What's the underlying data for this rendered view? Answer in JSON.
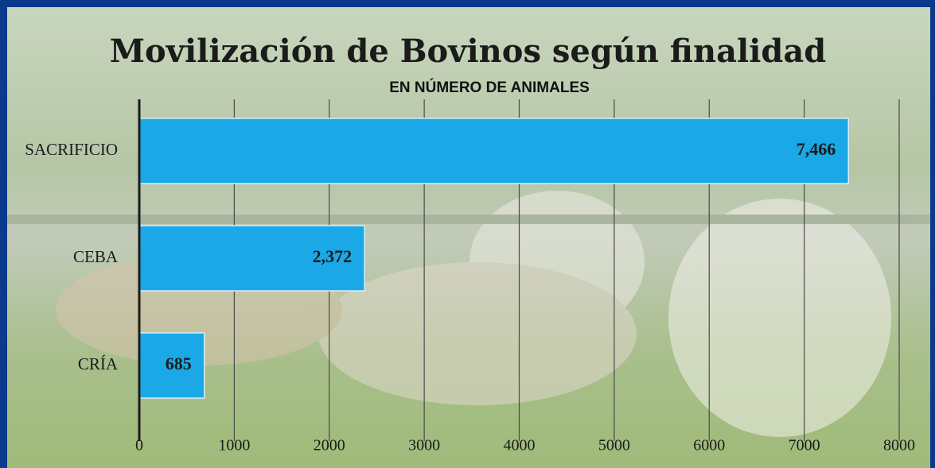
{
  "chart_data": {
    "type": "bar",
    "orientation": "horizontal",
    "title": "Movilización de Bovinos según finalidad",
    "subtitle": "EN NÚMERO DE ANIMALES",
    "categories": [
      "SACRIFICIO",
      "CEBA",
      "CRÍA"
    ],
    "values": [
      7466,
      2372,
      685
    ],
    "value_labels": [
      "7,466",
      "2,372",
      "685"
    ],
    "color": "#1aa8e6",
    "xlim": [
      0,
      8000
    ],
    "xticks": [
      0,
      1000,
      2000,
      3000,
      4000,
      5000,
      6000,
      7000,
      8000
    ],
    "grid": true
  }
}
